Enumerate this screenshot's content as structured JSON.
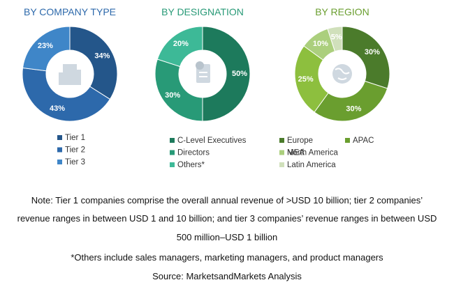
{
  "chart_data": [
    {
      "type": "pie",
      "title": "BY COMPANY TYPE",
      "categories": [
        "Tier 1",
        "Tier 2",
        "Tier 3"
      ],
      "values": [
        34,
        43,
        23
      ],
      "value_labels": [
        "34%",
        "43%",
        "23%"
      ],
      "colors": [
        "#24568a",
        "#2d69ab",
        "#3f86c8"
      ],
      "legend_columns": 1
    },
    {
      "type": "pie",
      "title": "BY DESIGNATION",
      "categories": [
        "C-Level Executives",
        "Directors",
        "Others*"
      ],
      "values": [
        50,
        30,
        20
      ],
      "value_labels": [
        "50%",
        "30%",
        "20%"
      ],
      "colors": [
        "#1d7a5c",
        "#289a77",
        "#3db997"
      ],
      "legend_columns": 1
    },
    {
      "type": "pie",
      "title": "BY REGION",
      "categories": [
        "Europe",
        "APAC",
        "North America",
        "MEA",
        "Latin America"
      ],
      "values": [
        30,
        30,
        25,
        10,
        5
      ],
      "value_labels": [
        "30%",
        "30%",
        "25%",
        "10%",
        "5%"
      ],
      "colors": [
        "#4b7b2b",
        "#6a9e2f",
        "#8dbf3e",
        "#abcf7d",
        "#d0e0bb"
      ],
      "legend_columns": 2
    }
  ],
  "note_lines": [
    "Note: Tier 1 companies comprise the overall annual revenue of >USD 10 billion; tier 2 companies’",
    "revenue ranges in between USD 1 and 10 billion; and tier 3 companies’ revenue ranges in between USD",
    "500 million–USD 1 billion"
  ],
  "footnote": "*Others include sales managers, marketing managers, and product managers",
  "source": "Source: MarketsandMarkets Analysis"
}
